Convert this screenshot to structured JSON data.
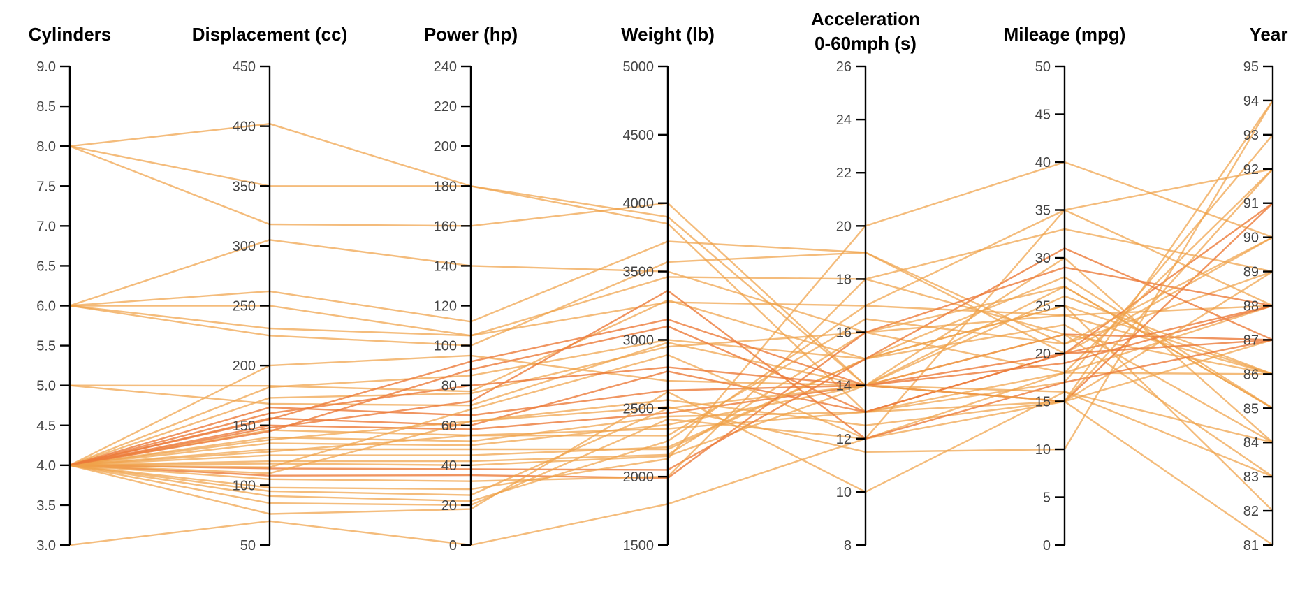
{
  "chart_data": {
    "type": "parallel_coordinates",
    "colors": {
      "line": "#f0a24a",
      "line_dense": "#ec7a3a",
      "axis": "#000000",
      "tick_label": "#444444"
    },
    "axes": [
      {
        "key": "cylinders",
        "title_lines": [
          "Cylinders"
        ],
        "range": [
          3,
          9
        ],
        "ticks": [
          3.0,
          3.5,
          4.0,
          4.5,
          5.0,
          5.5,
          6.0,
          6.5,
          7.0,
          7.5,
          8.0,
          8.5,
          9.0
        ],
        "tick_labels": [
          "3.0",
          "3.5",
          "4.0",
          "4.5",
          "5.0",
          "5.5",
          "6.0",
          "6.5",
          "7.0",
          "7.5",
          "8.0",
          "8.5",
          "9.0"
        ]
      },
      {
        "key": "displacement",
        "title_lines": [
          "Displacement (cc)"
        ],
        "range": [
          50,
          450
        ],
        "ticks": [
          50,
          100,
          150,
          200,
          250,
          300,
          350,
          400,
          450
        ],
        "tick_labels": [
          "50",
          "100",
          "150",
          "200",
          "250",
          "300",
          "350",
          "400",
          "450"
        ]
      },
      {
        "key": "power",
        "title_lines": [
          "Power (hp)"
        ],
        "range": [
          0,
          240
        ],
        "ticks": [
          0,
          20,
          40,
          60,
          80,
          100,
          120,
          140,
          160,
          180,
          200,
          220,
          240
        ],
        "tick_labels": [
          "0",
          "20",
          "40",
          "60",
          "80",
          "100",
          "120",
          "140",
          "160",
          "180",
          "200",
          "220",
          "240"
        ]
      },
      {
        "key": "weight",
        "title_lines": [
          "Weight (lb)"
        ],
        "range": [
          1500,
          5000
        ],
        "ticks": [
          1500,
          2000,
          2500,
          3000,
          3500,
          4000,
          4500,
          5000
        ],
        "tick_labels": [
          "1500",
          "2000",
          "2500",
          "3000",
          "3500",
          "4000",
          "4500",
          "5000"
        ]
      },
      {
        "key": "acceleration",
        "title_lines": [
          "Acceleration",
          "0-60mph (s)"
        ],
        "range": [
          8,
          26
        ],
        "ticks": [
          8,
          10,
          12,
          14,
          16,
          18,
          20,
          22,
          24,
          26
        ],
        "tick_labels": [
          "8",
          "10",
          "12",
          "14",
          "16",
          "18",
          "20",
          "22",
          "24",
          "26"
        ]
      },
      {
        "key": "mileage",
        "title_lines": [
          "Mileage (mpg)"
        ],
        "range": [
          0,
          50
        ],
        "ticks": [
          0,
          5,
          10,
          15,
          20,
          25,
          30,
          35,
          40,
          45,
          50
        ],
        "tick_labels": [
          "0",
          "5",
          "10",
          "15",
          "20",
          "25",
          "30",
          "35",
          "40",
          "45",
          "50"
        ]
      },
      {
        "key": "year",
        "title_lines": [
          "Year"
        ],
        "range": [
          81,
          95
        ],
        "ticks": [
          81,
          82,
          83,
          84,
          85,
          86,
          87,
          88,
          89,
          90,
          91,
          92,
          93,
          94,
          95
        ],
        "tick_labels": [
          "81",
          "82",
          "83",
          "84",
          "85",
          "86",
          "87",
          "88",
          "89",
          "90",
          "91",
          "92",
          "93",
          "94",
          "95"
        ]
      }
    ],
    "records": [
      [
        8,
        402,
        180,
        3850,
        13,
        15,
        81
      ],
      [
        8,
        350,
        180,
        3900,
        14,
        16,
        84
      ],
      [
        8,
        318,
        160,
        4000,
        14,
        15,
        87
      ],
      [
        6,
        305,
        140,
        3500,
        16,
        18,
        88
      ],
      [
        6,
        262,
        112,
        3720,
        19,
        20,
        90
      ],
      [
        6,
        250,
        105,
        3460,
        18,
        22,
        86
      ],
      [
        6,
        231,
        105,
        3275,
        17,
        24,
        88
      ],
      [
        6,
        225,
        100,
        3570,
        19,
        21,
        89
      ],
      [
        5,
        183,
        77,
        3290,
        15,
        25,
        86
      ],
      [
        5,
        168,
        70,
        2980,
        14,
        27,
        85
      ],
      [
        3,
        70,
        0,
        1800,
        12,
        35,
        88
      ],
      [
        4,
        200,
        95,
        2700,
        14,
        30,
        84
      ],
      [
        4,
        182,
        85,
        3000,
        15,
        28,
        85
      ],
      [
        4,
        173,
        76,
        2950,
        16,
        24,
        86
      ],
      [
        4,
        165,
        65,
        2630,
        14,
        22,
        87
      ],
      [
        4,
        156,
        60,
        2770,
        13,
        20,
        88
      ],
      [
        4,
        150,
        58,
        2465,
        14,
        20,
        91
      ],
      [
        4,
        146,
        55,
        2350,
        13,
        18,
        92
      ],
      [
        4,
        140,
        52,
        2440,
        13,
        17,
        93
      ],
      [
        4,
        135,
        50,
        2380,
        14,
        22,
        83
      ],
      [
        4,
        130,
        48,
        2200,
        15,
        25,
        82
      ],
      [
        4,
        125,
        45,
        2215,
        15,
        23,
        84
      ],
      [
        4,
        120,
        42,
        2160,
        16,
        27,
        85
      ],
      [
        4,
        118,
        40,
        2150,
        14,
        26,
        86
      ],
      [
        4,
        114,
        38,
        2050,
        15,
        31,
        87
      ],
      [
        4,
        108,
        35,
        1990,
        16,
        29,
        88
      ],
      [
        4,
        105,
        32,
        2000,
        18,
        33,
        89
      ],
      [
        4,
        98,
        28,
        2130,
        20,
        40,
        90
      ],
      [
        4,
        91,
        22,
        2260,
        17,
        35,
        92
      ],
      [
        4,
        85,
        20,
        2420,
        12,
        15,
        94
      ],
      [
        4,
        110,
        62,
        2510,
        11.5,
        10,
        94
      ],
      [
        4,
        76,
        18,
        2620,
        10,
        16,
        83
      ],
      [
        4,
        115,
        68,
        2890,
        12,
        18,
        86
      ],
      [
        4,
        145,
        88,
        3100,
        13,
        20,
        87
      ],
      [
        4,
        155,
        92,
        3150,
        14,
        19,
        88
      ],
      [
        4,
        160,
        80,
        2800,
        14,
        15,
        91
      ],
      [
        4,
        138,
        62,
        2560,
        12.5,
        15,
        89
      ],
      [
        4,
        128,
        55,
        2300,
        16.5,
        21,
        90
      ],
      [
        4,
        148,
        72,
        3360,
        12,
        17,
        87
      ],
      [
        4,
        95,
        25,
        2500,
        14,
        15,
        92
      ]
    ]
  }
}
